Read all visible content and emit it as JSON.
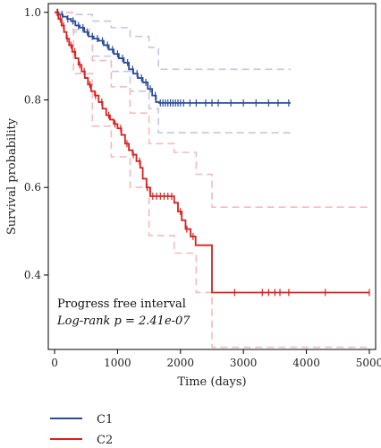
{
  "chart_data": {
    "type": "line",
    "subtype": "kaplan-meier",
    "xlabel": "Time (days)",
    "ylabel": "Survival probability",
    "xlim": [
      -100,
      5100
    ],
    "ylim": [
      0.23,
      1.02
    ],
    "xticks": [
      0,
      1000,
      2000,
      3000,
      4000,
      5000
    ],
    "yticks": [
      0.4,
      0.6,
      0.8,
      1.0
    ],
    "xtick_labels": [
      "0",
      "1000",
      "2000",
      "3000",
      "4000",
      "5000"
    ],
    "ytick_labels": [
      "0.4",
      "0.6",
      "0.8",
      "1.0"
    ],
    "grid": false,
    "annotation_line1": "Progress free interval",
    "annotation_line2": "Log-rank p = 2.41e-07",
    "legend_position": "bottom-left",
    "series": [
      {
        "name": "C1",
        "color": "#2a4d9b",
        "ci_color": "#c2c8e2",
        "steps": [
          [
            0,
            1.0
          ],
          [
            60,
            0.995
          ],
          [
            130,
            0.99
          ],
          [
            200,
            0.985
          ],
          [
            260,
            0.98
          ],
          [
            330,
            0.97
          ],
          [
            400,
            0.965
          ],
          [
            470,
            0.955
          ],
          [
            540,
            0.945
          ],
          [
            620,
            0.94
          ],
          [
            700,
            0.935
          ],
          [
            780,
            0.925
          ],
          [
            860,
            0.915
          ],
          [
            940,
            0.905
          ],
          [
            1020,
            0.895
          ],
          [
            1100,
            0.885
          ],
          [
            1180,
            0.87
          ],
          [
            1250,
            0.86
          ],
          [
            1320,
            0.85
          ],
          [
            1400,
            0.84
          ],
          [
            1480,
            0.825
          ],
          [
            1550,
            0.81
          ],
          [
            1610,
            0.795
          ],
          [
            1660,
            0.793
          ],
          [
            3750,
            0.793
          ]
        ],
        "ci_upper": [
          [
            0,
            1.0
          ],
          [
            300,
            0.995
          ],
          [
            600,
            0.98
          ],
          [
            900,
            0.965
          ],
          [
            1200,
            0.945
          ],
          [
            1500,
            0.92
          ],
          [
            1650,
            0.87
          ],
          [
            3750,
            0.87
          ]
        ],
        "ci_lower": [
          [
            0,
            1.0
          ],
          [
            300,
            0.955
          ],
          [
            600,
            0.9
          ],
          [
            900,
            0.865
          ],
          [
            1200,
            0.82
          ],
          [
            1500,
            0.78
          ],
          [
            1650,
            0.725
          ],
          [
            3750,
            0.725
          ]
        ],
        "censor_times": [
          50,
          120,
          210,
          290,
          380,
          450,
          520,
          600,
          680,
          760,
          840,
          920,
          1000,
          1080,
          1160,
          1240,
          1310,
          1380,
          1450,
          1520,
          1600,
          1680,
          1720,
          1760,
          1800,
          1840,
          1880,
          1920,
          1960,
          2000,
          2050,
          2150,
          2250,
          2400,
          2500,
          2600,
          2800,
          3000,
          3200,
          3400,
          3550,
          3720
        ]
      },
      {
        "name": "C2",
        "color": "#d92020",
        "ci_color": "#f2bcbc",
        "steps": [
          [
            0,
            1.0
          ],
          [
            60,
            0.985
          ],
          [
            110,
            0.97
          ],
          [
            150,
            0.955
          ],
          [
            190,
            0.94
          ],
          [
            230,
            0.925
          ],
          [
            280,
            0.91
          ],
          [
            330,
            0.895
          ],
          [
            380,
            0.88
          ],
          [
            430,
            0.865
          ],
          [
            480,
            0.85
          ],
          [
            530,
            0.835
          ],
          [
            580,
            0.82
          ],
          [
            640,
            0.81
          ],
          [
            700,
            0.795
          ],
          [
            760,
            0.78
          ],
          [
            820,
            0.765
          ],
          [
            880,
            0.755
          ],
          [
            940,
            0.745
          ],
          [
            1000,
            0.735
          ],
          [
            1060,
            0.72
          ],
          [
            1120,
            0.7
          ],
          [
            1180,
            0.685
          ],
          [
            1240,
            0.675
          ],
          [
            1300,
            0.66
          ],
          [
            1360,
            0.645
          ],
          [
            1400,
            0.62
          ],
          [
            1460,
            0.6
          ],
          [
            1520,
            0.58
          ],
          [
            1900,
            0.565
          ],
          [
            1960,
            0.545
          ],
          [
            2020,
            0.525
          ],
          [
            2080,
            0.505
          ],
          [
            2160,
            0.488
          ],
          [
            2240,
            0.468
          ],
          [
            2500,
            0.36
          ],
          [
            5000,
            0.36
          ]
        ],
        "ci_upper": [
          [
            0,
            1.0
          ],
          [
            300,
            0.96
          ],
          [
            600,
            0.89
          ],
          [
            900,
            0.83
          ],
          [
            1200,
            0.77
          ],
          [
            1500,
            0.7
          ],
          [
            1900,
            0.68
          ],
          [
            2250,
            0.63
          ],
          [
            2500,
            0.555
          ],
          [
            5000,
            0.555
          ]
        ],
        "ci_lower": [
          [
            0,
            1.0
          ],
          [
            300,
            0.86
          ],
          [
            600,
            0.74
          ],
          [
            900,
            0.67
          ],
          [
            1200,
            0.6
          ],
          [
            1500,
            0.49
          ],
          [
            1900,
            0.45
          ],
          [
            2250,
            0.36
          ],
          [
            2500,
            0.235
          ],
          [
            5000,
            0.235
          ]
        ],
        "censor_times": [
          40,
          90,
          140,
          200,
          260,
          320,
          400,
          470,
          560,
          650,
          750,
          860,
          960,
          1050,
          1150,
          1250,
          1350,
          1470,
          1560,
          1620,
          1680,
          1740,
          1800,
          1860,
          2000,
          2100,
          2200,
          2860,
          3300,
          3400,
          3500,
          3580,
          3720,
          4300,
          5000
        ]
      }
    ]
  }
}
